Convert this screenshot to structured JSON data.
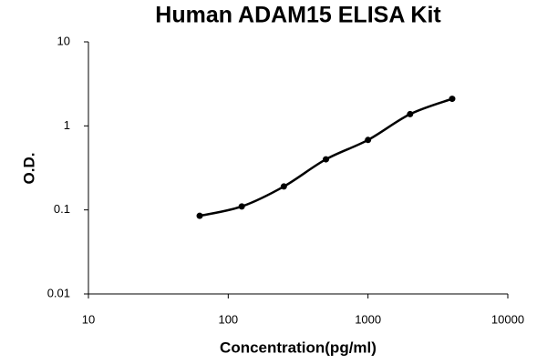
{
  "chart_data": {
    "type": "scatter",
    "title": "Human ADAM15 ELISA Kit",
    "xlabel": "Concentration(pg/ml)",
    "ylabel": "O.D.",
    "x": [
      62.5,
      125,
      250,
      500,
      1000,
      2000,
      4000
    ],
    "series": [
      {
        "color": "#000000",
        "values": [
          0.085,
          0.11,
          0.19,
          0.4,
          0.68,
          1.38,
          2.1
        ]
      }
    ],
    "xlim": [
      10,
      10000
    ],
    "ylim": [
      0.01,
      10
    ],
    "xticks": [
      10,
      100,
      1000,
      10000
    ],
    "yticks": [
      0.01,
      0.1,
      1,
      10
    ],
    "xscale": "log",
    "yscale": "log",
    "trendline": true
  }
}
